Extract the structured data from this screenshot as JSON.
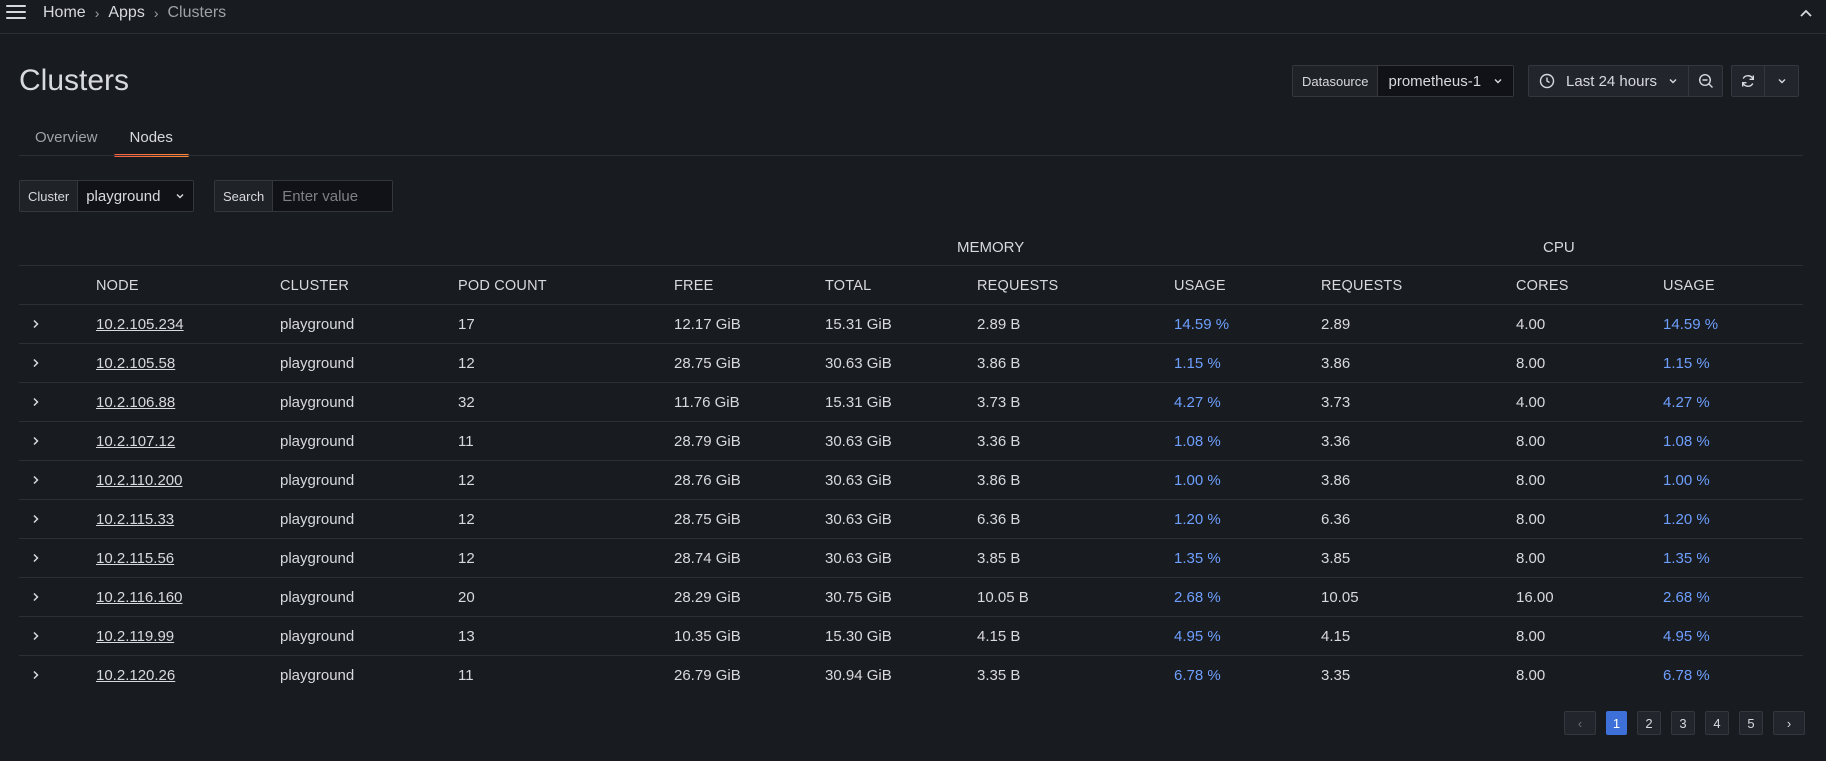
{
  "breadcrumb": [
    "Home",
    "Apps",
    "Clusters"
  ],
  "page": {
    "title": "Clusters"
  },
  "datasource": {
    "label": "Datasource",
    "value": "prometheus-1"
  },
  "time_range": {
    "label": "Last 24 hours"
  },
  "tabs": [
    {
      "label": "Overview",
      "active": false
    },
    {
      "label": "Nodes",
      "active": true
    }
  ],
  "filters": {
    "cluster": {
      "label": "Cluster",
      "value": "playground"
    },
    "search": {
      "label": "Search",
      "placeholder": "Enter value"
    }
  },
  "table": {
    "groups": {
      "memory": "MEMORY",
      "cpu": "CPU"
    },
    "headers": [
      "NODE",
      "CLUSTER",
      "POD COUNT",
      "FREE",
      "TOTAL",
      "REQUESTS",
      "USAGE",
      "REQUESTS",
      "CORES",
      "USAGE"
    ],
    "rows": [
      [
        "10.2.105.234",
        "playground",
        "17",
        "12.17 GiB",
        "15.31 GiB",
        "2.89 B",
        "14.59 %",
        "2.89",
        "4.00",
        "14.59 %"
      ],
      [
        "10.2.105.58",
        "playground",
        "12",
        "28.75 GiB",
        "30.63 GiB",
        "3.86 B",
        "1.15 %",
        "3.86",
        "8.00",
        "1.15 %"
      ],
      [
        "10.2.106.88",
        "playground",
        "32",
        "11.76 GiB",
        "15.31 GiB",
        "3.73 B",
        "4.27 %",
        "3.73",
        "4.00",
        "4.27 %"
      ],
      [
        "10.2.107.12",
        "playground",
        "11",
        "28.79 GiB",
        "30.63 GiB",
        "3.36 B",
        "1.08 %",
        "3.36",
        "8.00",
        "1.08 %"
      ],
      [
        "10.2.110.200",
        "playground",
        "12",
        "28.76 GiB",
        "30.63 GiB",
        "3.86 B",
        "1.00 %",
        "3.86",
        "8.00",
        "1.00 %"
      ],
      [
        "10.2.115.33",
        "playground",
        "12",
        "28.75 GiB",
        "30.63 GiB",
        "6.36 B",
        "1.20 %",
        "6.36",
        "8.00",
        "1.20 %"
      ],
      [
        "10.2.115.56",
        "playground",
        "12",
        "28.74 GiB",
        "30.63 GiB",
        "3.85 B",
        "1.35 %",
        "3.85",
        "8.00",
        "1.35 %"
      ],
      [
        "10.2.116.160",
        "playground",
        "20",
        "28.29 GiB",
        "30.75 GiB",
        "10.05 B",
        "2.68 %",
        "10.05",
        "16.00",
        "2.68 %"
      ],
      [
        "10.2.119.99",
        "playground",
        "13",
        "10.35 GiB",
        "15.30 GiB",
        "4.15 B",
        "4.95 %",
        "4.15",
        "8.00",
        "4.95 %"
      ],
      [
        "10.2.120.26",
        "playground",
        "11",
        "26.79 GiB",
        "30.94 GiB",
        "3.35 B",
        "6.78 %",
        "3.35",
        "8.00",
        "6.78 %"
      ]
    ]
  },
  "pagination": {
    "pages": [
      "1",
      "2",
      "3",
      "4",
      "5"
    ],
    "current": "1"
  },
  "colors": {
    "accent": "#3d71d9",
    "usage": "#6e9fff",
    "tab_underline": "#ff8833"
  }
}
